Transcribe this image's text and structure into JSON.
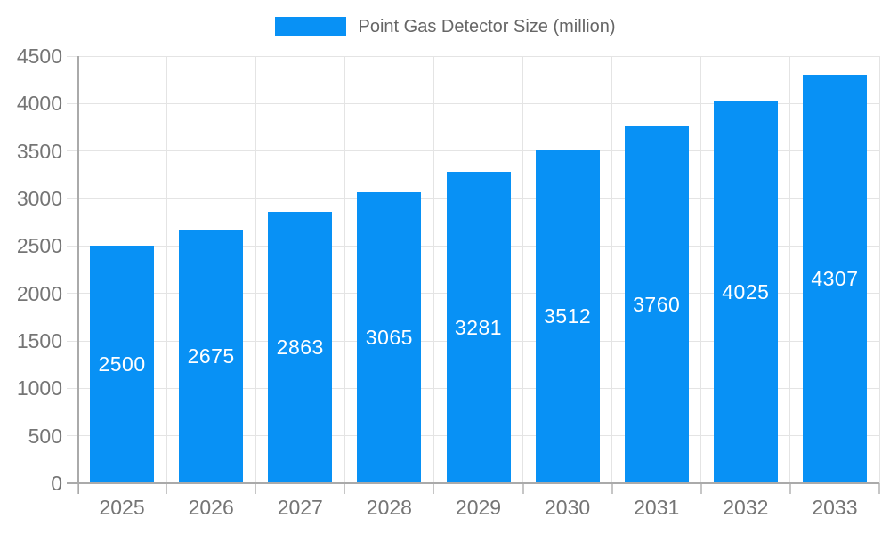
{
  "legend": {
    "position": "top"
  },
  "chart_data": {
    "type": "bar",
    "title": "Point Gas Detector Size (million)",
    "categories": [
      "2025",
      "2026",
      "2027",
      "2028",
      "2029",
      "2030",
      "2031",
      "2032",
      "2033"
    ],
    "values": [
      2500,
      2675,
      2863,
      3065,
      3281,
      3512,
      3760,
      4025,
      4307
    ],
    "xlabel": "",
    "ylabel": "",
    "ylim": [
      0,
      4500
    ],
    "ytick_step": 500,
    "yticks": [
      0,
      500,
      1000,
      1500,
      2000,
      2500,
      3000,
      3500,
      4000,
      4500
    ],
    "grid": true,
    "legend_position": "top",
    "bar_color": "#0891f5",
    "bar_label_color": "#ffffff",
    "axis_label_color": "#757575",
    "title_color": "#666666",
    "grid_color": "#e4e4e4",
    "axis_line_color": "#aaaaaa",
    "tick_color": "#c6c6c6",
    "background_color": "#ffffff"
  }
}
